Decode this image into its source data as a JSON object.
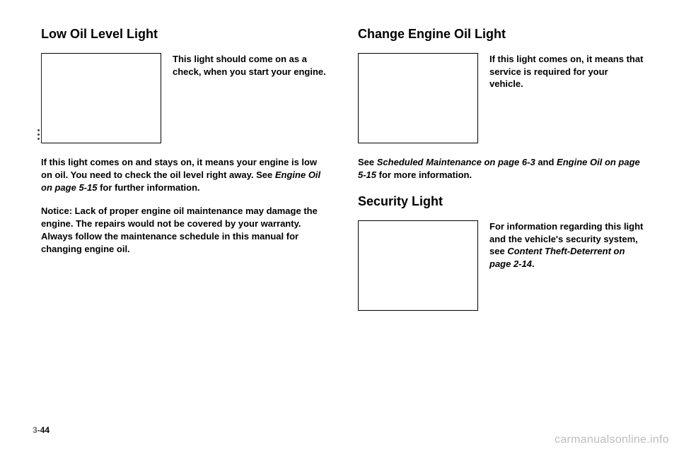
{
  "left": {
    "heading": "Low Oil Level Light",
    "side1": "This light should come on as a check, when you start your engine.",
    "para1_a": "If this light comes on and stays on, it means your engine is low on oil. You need to check the oil level right away. See ",
    "para1_ital": "Engine Oil on page 5-15",
    "para1_b": " for further information.",
    "notice": "Notice: Lack of proper engine oil maintenance may damage the engine. The repairs would not be covered by your warranty. Always follow the maintenance schedule in this manual for changing engine oil."
  },
  "right": {
    "heading1": "Change Engine Oil Light",
    "side1": "If this light comes on, it means that service is required for your vehicle.",
    "ref_a": "See ",
    "ref_i1": "Scheduled Maintenance on page 6-3",
    "ref_mid": " and ",
    "ref_i2": "Engine Oil on page 5-15",
    "ref_b": " for more information.",
    "heading2": "Security Light",
    "side2_a": "For information regarding this light and the vehicle's security system, see ",
    "side2_i": "Content Theft-Deterrent on page 2-14",
    "side2_b": "."
  },
  "footer": {
    "pagenum": "3-44",
    "watermark": "carmanualsonline.info"
  }
}
